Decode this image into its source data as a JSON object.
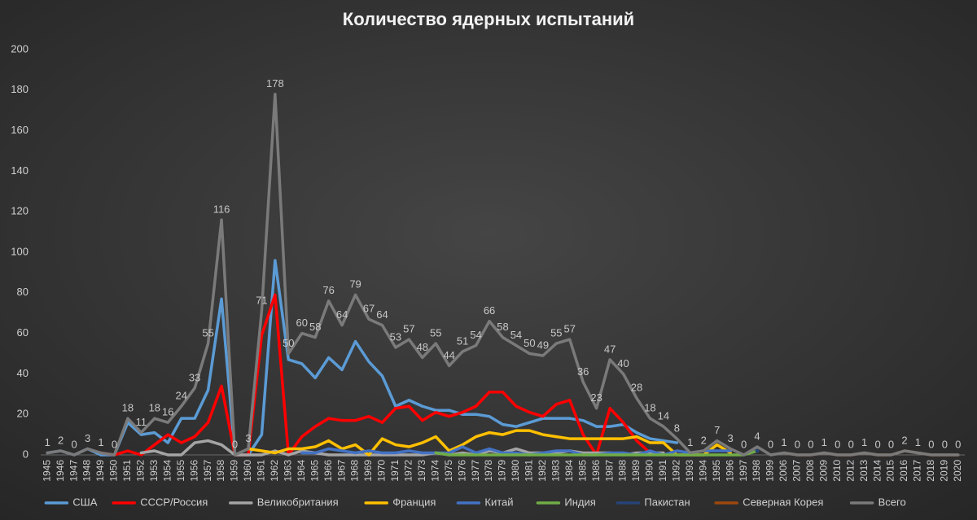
{
  "chart_data": {
    "type": "line",
    "title": "Количество ядерных испытаний",
    "categories": [
      "1945",
      "1946",
      "1947",
      "1948",
      "1949",
      "1950",
      "1951",
      "1952",
      "1953",
      "1954",
      "1955",
      "1956",
      "1957",
      "1958",
      "1959",
      "1960",
      "1961",
      "1962",
      "1963",
      "1964",
      "1965",
      "1966",
      "1967",
      "1968",
      "1969",
      "1970",
      "1971",
      "1972",
      "1973",
      "1974",
      "1975",
      "1976",
      "1977",
      "1978",
      "1979",
      "1980",
      "1981",
      "1982",
      "1983",
      "1984",
      "1985",
      "1986",
      "1987",
      "1988",
      "1989",
      "1990",
      "1991",
      "1992",
      "1993",
      "1994",
      "1995",
      "1996",
      "1997",
      "1998",
      "1999",
      "2006",
      "2007",
      "2008",
      "2009",
      "2010",
      "2012",
      "2013",
      "2014",
      "2015",
      "2016",
      "2017",
      "2018",
      "2019",
      "2020"
    ],
    "ylim": [
      0,
      200
    ],
    "yticks": [
      0,
      20,
      40,
      60,
      80,
      100,
      120,
      140,
      160,
      180,
      200
    ],
    "grid": false,
    "legend": "bottom",
    "series": [
      {
        "name": "США",
        "color": "#5b9bd5",
        "values": [
          1,
          2,
          0,
          3,
          0,
          0,
          16,
          10,
          11,
          6,
          18,
          18,
          32,
          77,
          0,
          0,
          10,
          96,
          47,
          45,
          38,
          48,
          42,
          56,
          46,
          39,
          24,
          27,
          24,
          22,
          22,
          20,
          20,
          19,
          15,
          14,
          16,
          18,
          18,
          18,
          17,
          14,
          14,
          15,
          11,
          8,
          7,
          6,
          null,
          null,
          null,
          null,
          null,
          null,
          null,
          null,
          null,
          null,
          null,
          null,
          null,
          null,
          null,
          null,
          null,
          null,
          null,
          null,
          null
        ]
      },
      {
        "name": "СССР/Россия",
        "color": "#ff0000",
        "values": [
          null,
          null,
          null,
          null,
          1,
          0,
          2,
          0,
          5,
          10,
          6,
          9,
          16,
          34,
          0,
          0,
          59,
          79,
          0,
          9,
          14,
          18,
          17,
          17,
          19,
          16,
          23,
          24,
          17,
          21,
          19,
          21,
          24,
          31,
          31,
          24,
          21,
          19,
          25,
          27,
          10,
          0,
          23,
          16,
          7,
          1,
          null,
          null,
          null,
          null,
          null,
          null,
          null,
          null,
          null,
          null,
          null,
          null,
          null,
          null,
          null,
          null,
          null,
          null,
          null,
          null,
          null,
          null,
          null
        ]
      },
      {
        "name": "Великобритания",
        "color": "#a5a5a5",
        "values": [
          null,
          null,
          null,
          null,
          null,
          null,
          null,
          1,
          2,
          0,
          0,
          6,
          7,
          5,
          0,
          0,
          0,
          2,
          0,
          2,
          1,
          0,
          0,
          0,
          0,
          0,
          0,
          0,
          0,
          1,
          0,
          1,
          0,
          2,
          1,
          3,
          1,
          1,
          1,
          2,
          1,
          1,
          1,
          0,
          1,
          1,
          1,
          null,
          null,
          null,
          null,
          null,
          null,
          null,
          null,
          null,
          null,
          null,
          null,
          null,
          null,
          null,
          null,
          null,
          null,
          null,
          null,
          null,
          null
        ]
      },
      {
        "name": "Франция",
        "color": "#ffc000",
        "values": [
          null,
          null,
          null,
          null,
          null,
          null,
          null,
          null,
          null,
          null,
          null,
          null,
          null,
          null,
          null,
          3,
          2,
          1,
          3,
          3,
          4,
          7,
          3,
          5,
          0,
          8,
          5,
          4,
          6,
          9,
          2,
          5,
          9,
          11,
          10,
          12,
          12,
          10,
          9,
          8,
          8,
          8,
          8,
          8,
          9,
          6,
          6,
          0,
          0,
          0,
          5,
          1,
          null,
          null,
          null,
          null,
          null,
          null,
          null,
          null,
          null,
          null,
          null,
          null,
          null,
          null,
          null,
          null,
          null
        ]
      },
      {
        "name": "Китай",
        "color": "#4472c4",
        "values": [
          null,
          null,
          null,
          null,
          null,
          null,
          null,
          null,
          null,
          null,
          null,
          null,
          null,
          null,
          null,
          null,
          null,
          null,
          null,
          1,
          1,
          3,
          2,
          1,
          2,
          1,
          1,
          2,
          1,
          1,
          1,
          4,
          1,
          3,
          1,
          1,
          0,
          1,
          2,
          2,
          0,
          0,
          1,
          1,
          0,
          2,
          0,
          2,
          1,
          2,
          2,
          2,
          null,
          null,
          null,
          null,
          null,
          null,
          null,
          null,
          null,
          null,
          null,
          null,
          null,
          null,
          null,
          null,
          null
        ]
      },
      {
        "name": "Индия",
        "color": "#70ad47",
        "values": [
          null,
          null,
          null,
          null,
          null,
          null,
          null,
          null,
          null,
          null,
          null,
          null,
          null,
          null,
          null,
          null,
          null,
          null,
          null,
          null,
          null,
          null,
          null,
          null,
          null,
          null,
          null,
          null,
          null,
          1,
          0,
          0,
          0,
          0,
          0,
          0,
          0,
          0,
          0,
          0,
          0,
          0,
          0,
          0,
          0,
          0,
          0,
          0,
          0,
          0,
          0,
          0,
          0,
          2,
          null,
          null,
          null,
          null,
          null,
          null,
          null,
          null,
          null,
          null,
          null,
          null,
          null,
          null,
          null
        ]
      },
      {
        "name": "Пакистан",
        "color": "#264478",
        "values": [
          null,
          null,
          null,
          null,
          null,
          null,
          null,
          null,
          null,
          null,
          null,
          null,
          null,
          null,
          null,
          null,
          null,
          null,
          null,
          null,
          null,
          null,
          null,
          null,
          null,
          null,
          null,
          null,
          null,
          null,
          null,
          null,
          null,
          null,
          null,
          null,
          null,
          null,
          null,
          null,
          null,
          null,
          null,
          null,
          null,
          null,
          null,
          null,
          null,
          null,
          null,
          null,
          null,
          2,
          null,
          null,
          null,
          null,
          null,
          null,
          null,
          null,
          null,
          null,
          null,
          null,
          null,
          null,
          null
        ]
      },
      {
        "name": "Северная Корея",
        "color": "#9e480e",
        "values": [
          null,
          null,
          null,
          null,
          null,
          null,
          null,
          null,
          null,
          null,
          null,
          null,
          null,
          null,
          null,
          null,
          null,
          null,
          null,
          null,
          null,
          null,
          null,
          null,
          null,
          null,
          null,
          null,
          null,
          null,
          null,
          null,
          null,
          null,
          null,
          null,
          null,
          null,
          null,
          null,
          null,
          null,
          null,
          null,
          null,
          null,
          null,
          null,
          null,
          null,
          null,
          null,
          null,
          null,
          null,
          1,
          0,
          0,
          1,
          0,
          0,
          1,
          0,
          0,
          2,
          1,
          0,
          0,
          0
        ]
      },
      {
        "name": "Всего",
        "color": "#7a7a7a",
        "labels": true,
        "values": [
          1,
          2,
          0,
          3,
          1,
          0,
          18,
          11,
          18,
          16,
          24,
          33,
          55,
          116,
          0,
          3,
          71,
          178,
          50,
          60,
          58,
          76,
          64,
          79,
          67,
          64,
          53,
          57,
          48,
          55,
          44,
          51,
          54,
          66,
          58,
          54,
          50,
          49,
          55,
          57,
          36,
          23,
          47,
          40,
          28,
          18,
          14,
          8,
          1,
          2,
          7,
          3,
          0,
          4,
          0,
          1,
          0,
          0,
          1,
          0,
          0,
          1,
          0,
          0,
          2,
          1,
          0,
          0,
          0
        ]
      }
    ]
  }
}
